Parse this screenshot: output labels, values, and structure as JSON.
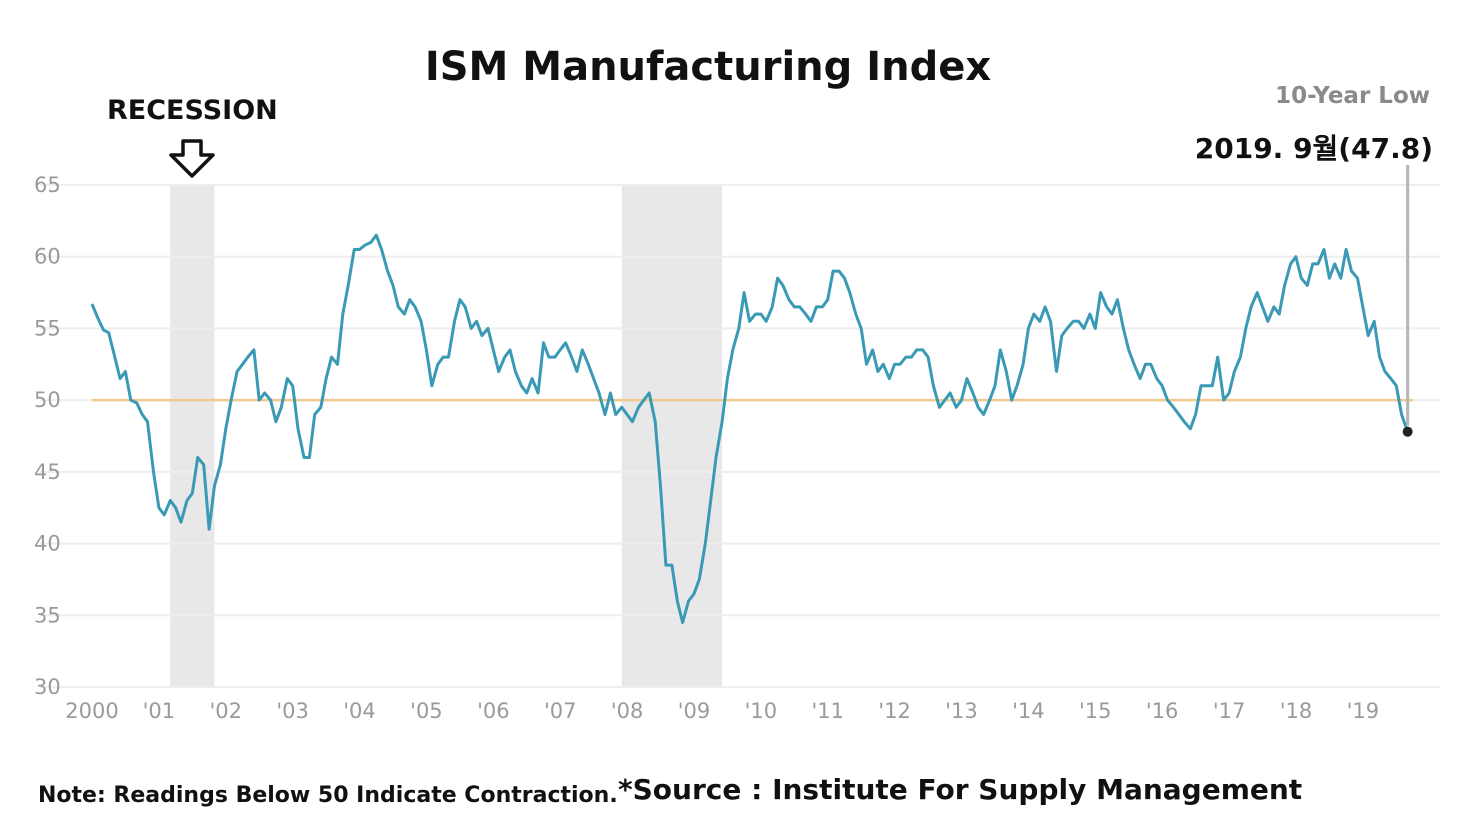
{
  "chart_data": {
    "type": "line",
    "title": "ISM Manufacturing Index",
    "xlabel": "",
    "ylabel": "",
    "ylim": [
      30,
      65
    ],
    "y_ticks": [
      30,
      35,
      40,
      45,
      50,
      55,
      60,
      65
    ],
    "x_range": [
      2000.0,
      2019.75
    ],
    "x_ticks": [
      {
        "x": 2000,
        "label": "2000"
      },
      {
        "x": 2001,
        "label": "'01"
      },
      {
        "x": 2002,
        "label": "'02"
      },
      {
        "x": 2003,
        "label": "'03"
      },
      {
        "x": 2004,
        "label": "'04"
      },
      {
        "x": 2005,
        "label": "'05"
      },
      {
        "x": 2006,
        "label": "'06"
      },
      {
        "x": 2007,
        "label": "'07"
      },
      {
        "x": 2008,
        "label": "'08"
      },
      {
        "x": 2009,
        "label": "'09"
      },
      {
        "x": 2010,
        "label": "'10"
      },
      {
        "x": 2011,
        "label": "'11"
      },
      {
        "x": 2012,
        "label": "'12"
      },
      {
        "x": 2013,
        "label": "'13"
      },
      {
        "x": 2014,
        "label": "'14"
      },
      {
        "x": 2015,
        "label": "'15"
      },
      {
        "x": 2016,
        "label": "'16"
      },
      {
        "x": 2017,
        "label": "'17"
      },
      {
        "x": 2018,
        "label": "'18"
      },
      {
        "x": 2019,
        "label": "'19"
      }
    ],
    "grid": true,
    "reference_line": {
      "y": 50,
      "color": "#f0c890"
    },
    "recessions": [
      {
        "start": 2001.17,
        "end": 2001.83
      },
      {
        "start": 2007.92,
        "end": 2009.42
      }
    ],
    "series": [
      {
        "color": "#3a9ab5",
        "x": [
          2000.0,
          2000.08,
          2000.17,
          2000.25,
          2000.33,
          2000.42,
          2000.5,
          2000.58,
          2000.67,
          2000.75,
          2000.83,
          2000.92,
          2001.0,
          2001.08,
          2001.17,
          2001.25,
          2001.33,
          2001.42,
          2001.5,
          2001.58,
          2001.67,
          2001.75,
          2001.83,
          2001.92,
          2002.0,
          2002.08,
          2002.17,
          2002.25,
          2002.33,
          2002.42,
          2002.5,
          2002.58,
          2002.67,
          2002.75,
          2002.83,
          2002.92,
          2003.0,
          2003.08,
          2003.17,
          2003.25,
          2003.33,
          2003.42,
          2003.5,
          2003.58,
          2003.67,
          2003.75,
          2003.83,
          2003.92,
          2004.0,
          2004.08,
          2004.17,
          2004.25,
          2004.33,
          2004.42,
          2004.5,
          2004.58,
          2004.67,
          2004.75,
          2004.83,
          2004.92,
          2005.0,
          2005.08,
          2005.17,
          2005.25,
          2005.33,
          2005.42,
          2005.5,
          2005.58,
          2005.67,
          2005.75,
          2005.83,
          2005.92,
          2006.0,
          2006.08,
          2006.17,
          2006.25,
          2006.33,
          2006.42,
          2006.5,
          2006.58,
          2006.67,
          2006.75,
          2006.83,
          2006.92,
          2007.0,
          2007.08,
          2007.17,
          2007.25,
          2007.33,
          2007.42,
          2007.5,
          2007.58,
          2007.67,
          2007.75,
          2007.83,
          2007.92,
          2008.0,
          2008.08,
          2008.17,
          2008.25,
          2008.33,
          2008.42,
          2008.5,
          2008.58,
          2008.67,
          2008.75,
          2008.83,
          2008.92,
          2009.0,
          2009.08,
          2009.17,
          2009.25,
          2009.33,
          2009.42,
          2009.5,
          2009.58,
          2009.67,
          2009.75,
          2009.83,
          2009.92,
          2010.0,
          2010.08,
          2010.17,
          2010.25,
          2010.33,
          2010.42,
          2010.5,
          2010.58,
          2010.67,
          2010.75,
          2010.83,
          2010.92,
          2011.0,
          2011.08,
          2011.17,
          2011.25,
          2011.33,
          2011.42,
          2011.5,
          2011.58,
          2011.67,
          2011.75,
          2011.83,
          2011.92,
          2012.0,
          2012.08,
          2012.17,
          2012.25,
          2012.33,
          2012.42,
          2012.5,
          2012.58,
          2012.67,
          2012.75,
          2012.83,
          2012.92,
          2013.0,
          2013.08,
          2013.17,
          2013.25,
          2013.33,
          2013.42,
          2013.5,
          2013.58,
          2013.67,
          2013.75,
          2013.83,
          2013.92,
          2014.0,
          2014.08,
          2014.17,
          2014.25,
          2014.33,
          2014.42,
          2014.5,
          2014.58,
          2014.67,
          2014.75,
          2014.83,
          2014.92,
          2015.0,
          2015.08,
          2015.17,
          2015.25,
          2015.33,
          2015.42,
          2015.5,
          2015.58,
          2015.67,
          2015.75,
          2015.83,
          2015.92,
          2016.0,
          2016.08,
          2016.17,
          2016.25,
          2016.33,
          2016.42,
          2016.5,
          2016.58,
          2016.67,
          2016.75,
          2016.83,
          2016.92,
          2017.0,
          2017.08,
          2017.17,
          2017.25,
          2017.33,
          2017.42,
          2017.5,
          2017.58,
          2017.67,
          2017.75,
          2017.83,
          2017.92,
          2018.0,
          2018.08,
          2018.17,
          2018.25,
          2018.33,
          2018.42,
          2018.5,
          2018.58,
          2018.67,
          2018.75,
          2018.83,
          2018.92,
          2019.0,
          2019.08,
          2019.17,
          2019.25,
          2019.33,
          2019.42,
          2019.5,
          2019.58,
          2019.67
        ],
        "values": [
          56.7,
          55.8,
          54.9,
          54.7,
          53.2,
          51.5,
          52.0,
          50.0,
          49.8,
          49.0,
          48.5,
          45.0,
          42.5,
          42.0,
          43.0,
          42.5,
          41.5,
          43.0,
          43.5,
          46.0,
          45.5,
          41.0,
          44.0,
          45.5,
          48.0,
          50.0,
          52.0,
          52.5,
          53.0,
          53.5,
          50.0,
          50.5,
          50.0,
          48.5,
          49.5,
          51.5,
          51.0,
          48.0,
          46.0,
          46.0,
          49.0,
          49.5,
          51.5,
          53.0,
          52.5,
          56.0,
          58.0,
          60.5,
          60.5,
          60.8,
          61.0,
          61.5,
          60.5,
          59.0,
          58.0,
          56.5,
          56.0,
          57.0,
          56.5,
          55.5,
          53.5,
          51.0,
          52.5,
          53.0,
          53.0,
          55.5,
          57.0,
          56.5,
          55.0,
          55.5,
          54.5,
          55.0,
          53.5,
          52.0,
          53.0,
          53.5,
          52.0,
          51.0,
          50.5,
          51.5,
          50.5,
          54.0,
          53.0,
          53.0,
          53.5,
          54.0,
          53.0,
          52.0,
          53.5,
          52.5,
          51.5,
          50.5,
          49.0,
          50.5,
          49.0,
          49.5,
          49.0,
          48.5,
          49.5,
          50.0,
          50.5,
          48.5,
          44.0,
          38.5,
          38.5,
          36.0,
          34.5,
          36.0,
          36.5,
          37.5,
          40.0,
          43.0,
          46.0,
          48.5,
          51.5,
          53.5,
          55.0,
          57.5,
          55.5,
          56.0,
          56.0,
          55.5,
          56.5,
          58.5,
          58.0,
          57.0,
          56.5,
          56.5,
          56.0,
          55.5,
          56.5,
          56.5,
          57.0,
          59.0,
          59.0,
          58.5,
          57.5,
          56.0,
          55.0,
          52.5,
          53.5,
          52.0,
          52.5,
          51.5,
          52.5,
          52.5,
          53.0,
          53.0,
          53.5,
          53.5,
          53.0,
          51.0,
          49.5,
          50.0,
          50.5,
          49.5,
          50.0,
          51.5,
          50.5,
          49.5,
          49.0,
          50.0,
          51.0,
          53.5,
          52.0,
          50.0,
          51.0,
          52.5,
          55.0,
          56.0,
          55.5,
          56.5,
          55.5,
          52.0,
          54.5,
          55.0,
          55.5,
          55.5,
          55.0,
          56.0,
          55.0,
          57.5,
          56.5,
          56.0,
          57.0,
          55.0,
          53.5,
          52.5,
          51.5,
          52.5,
          52.5,
          51.5,
          51.0,
          50.0,
          49.5,
          49.0,
          48.5,
          48.0,
          49.0,
          51.0,
          51.0,
          51.0,
          53.0,
          50.0,
          50.5,
          52.0,
          53.0,
          55.0,
          56.5,
          57.5,
          56.5,
          55.5,
          56.5,
          56.0,
          58.0,
          59.5,
          60.0,
          58.5,
          58.0,
          59.5,
          59.5,
          60.5,
          58.5,
          59.5,
          58.5,
          60.5,
          59.0,
          58.5,
          56.5,
          54.5,
          55.5,
          53.0,
          52.0,
          51.5,
          51.0,
          49.0,
          47.8
        ]
      }
    ],
    "annotations": {
      "recession_label": "RECESSION",
      "low_label": "10-Year Low",
      "callout": "2019. 9월(47.8)"
    },
    "last_point": {
      "x": 2019.67,
      "y": 47.8
    }
  },
  "footer": {
    "note": "Note: Readings Below 50 Indicate Contraction.",
    "source": "*Source : Institute For Supply Management"
  },
  "colors": {
    "line": "#3a9ab5",
    "recession_band": "#e8e8e8",
    "grid": "#eeeeee",
    "reference": "#f0c890",
    "tick_text": "#9a9a9a"
  }
}
